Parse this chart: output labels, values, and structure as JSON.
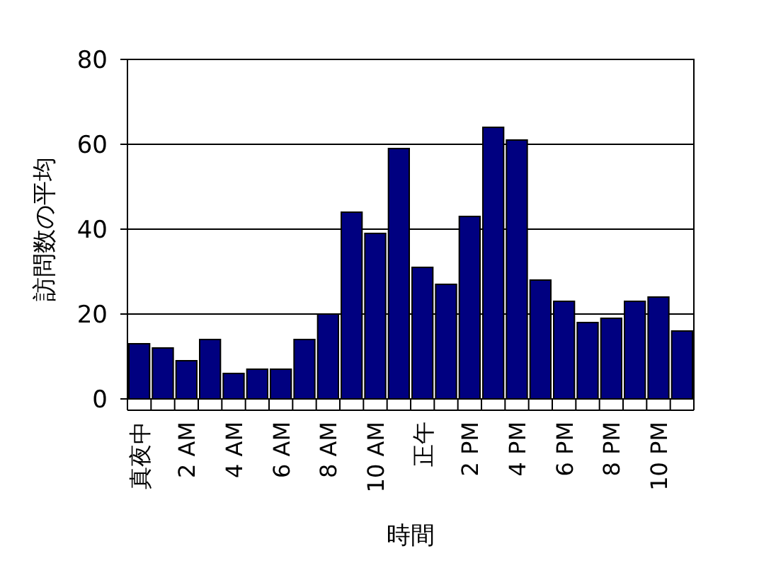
{
  "chart_data": {
    "type": "bar",
    "xlabel": "時間",
    "ylabel": "訪問数の平均",
    "categories": [
      "真夜中",
      null,
      "2 AM",
      null,
      "4 AM",
      null,
      "6 AM",
      null,
      "8 AM",
      null,
      "10 AM",
      null,
      "正午",
      null,
      "2 PM",
      null,
      "4 PM",
      null,
      "6 PM",
      null,
      "8 PM",
      null,
      "10 PM",
      null
    ],
    "values": [
      13,
      12,
      9,
      14,
      6,
      7,
      7,
      14,
      20,
      44,
      39,
      59,
      31,
      27,
      43,
      64,
      61,
      28,
      23,
      18,
      19,
      23,
      24,
      16
    ],
    "color": "#000080",
    "ylim": [
      0,
      80
    ],
    "yticks": [
      0,
      20,
      40,
      60,
      80
    ],
    "grid": "y",
    "legend": false
  }
}
